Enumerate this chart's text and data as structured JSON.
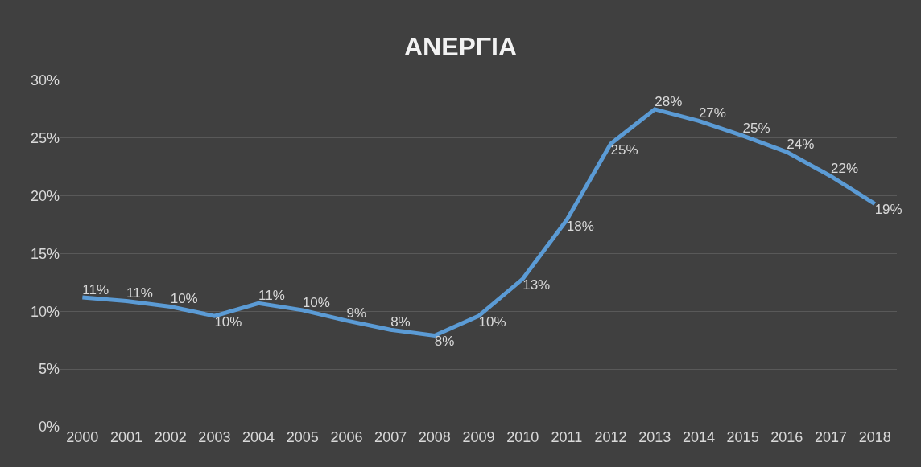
{
  "chart_data": {
    "type": "line",
    "title": "ΑΝΕΡΓΙΑ",
    "categories": [
      "2000",
      "2001",
      "2002",
      "2003",
      "2004",
      "2005",
      "2006",
      "2007",
      "2008",
      "2009",
      "2010",
      "2011",
      "2012",
      "2013",
      "2014",
      "2015",
      "2016",
      "2017",
      "2018"
    ],
    "series": [
      {
        "color": "#5b9bd5",
        "values": [
          11.2,
          10.9,
          10.4,
          9.6,
          10.7,
          10.1,
          9.2,
          8.4,
          7.9,
          9.6,
          12.8,
          17.9,
          24.5,
          27.5,
          26.5,
          25.2,
          23.8,
          21.7,
          19.3
        ],
        "value_labels": [
          "11%",
          "11%",
          "10%",
          "10%",
          "11%",
          "10%",
          "9%",
          "8%",
          "8%",
          "10%",
          "13%",
          "18%",
          "25%",
          "28%",
          "27%",
          "25%",
          "24%",
          "22%",
          "19%"
        ]
      }
    ],
    "ylim": [
      0,
      30
    ],
    "yticks": [
      {
        "value": 0,
        "label": "0%"
      },
      {
        "value": 5,
        "label": "5%"
      },
      {
        "value": 10,
        "label": "10%"
      },
      {
        "value": 15,
        "label": "15%"
      },
      {
        "value": 20,
        "label": "20%"
      },
      {
        "value": 25,
        "label": "25%"
      },
      {
        "value": 30,
        "label": "30%"
      }
    ],
    "grid": "y",
    "marker": "none",
    "line_style": "solid"
  }
}
